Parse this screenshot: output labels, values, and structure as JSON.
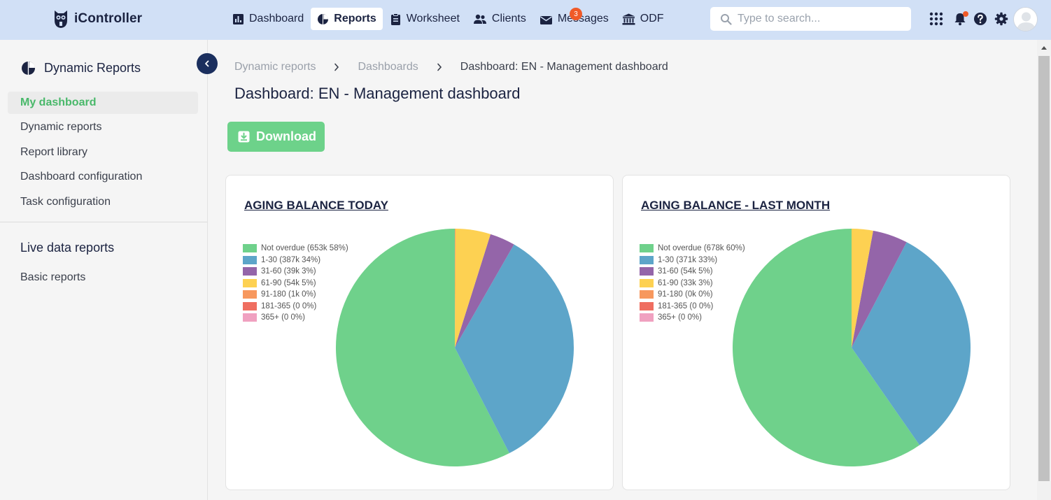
{
  "app": {
    "name": "iController"
  },
  "nav": {
    "items": [
      {
        "label": "Dashboard",
        "icon": "bar-chart-icon"
      },
      {
        "label": "Reports",
        "icon": "pie-chart-icon",
        "active": true
      },
      {
        "label": "Worksheet",
        "icon": "clipboard-icon"
      },
      {
        "label": "Clients",
        "icon": "users-icon"
      },
      {
        "label": "Messages",
        "icon": "envelope-icon",
        "badge": "3"
      },
      {
        "label": "ODF",
        "icon": "bank-icon"
      }
    ],
    "messages_badge": "3"
  },
  "search": {
    "placeholder": "Type to search..."
  },
  "sidebar": {
    "title": "Dynamic Reports",
    "items": [
      {
        "label": "My dashboard",
        "active": true
      },
      {
        "label": "Dynamic reports"
      },
      {
        "label": "Report library"
      },
      {
        "label": "Dashboard configuration"
      },
      {
        "label": "Task configuration"
      }
    ],
    "section_title": "Live data reports",
    "section_items": [
      {
        "label": "Basic reports"
      }
    ]
  },
  "breadcrumb": {
    "items": [
      "Dynamic reports",
      "Dashboards"
    ],
    "current": "Dashboard: EN - Management dashboard"
  },
  "page": {
    "title": "Dashboard: EN - Management dashboard",
    "download_label": "Download"
  },
  "colors": {
    "accent_green": "#6dd28a",
    "active_green": "#49b86a",
    "navy": "#1b2341",
    "topbar": "#d1e0f6",
    "badge_orange": "#f05a28"
  },
  "chart_data": [
    {
      "type": "pie",
      "title": "AGING BALANCE TODAY",
      "legend_position": "top-left",
      "slices": [
        {
          "label": "Not overdue (653k 58%)",
          "value": 653,
          "color": "#6fd18b"
        },
        {
          "label": "1-30 (387k 34%)",
          "value": 387,
          "color": "#5da5c9"
        },
        {
          "label": "31-60 (39k 3%)",
          "value": 39,
          "color": "#9465a9"
        },
        {
          "label": "61-90 (54k 5%)",
          "value": 54,
          "color": "#fdd152"
        },
        {
          "label": "91-180 (1k 0%)",
          "value": 1,
          "color": "#f7985e"
        },
        {
          "label": "181-365 (0 0%)",
          "value": 0,
          "color": "#ef6e61"
        },
        {
          "label": "365+ (0 0%)",
          "value": 0,
          "color": "#f0a1c0"
        }
      ]
    },
    {
      "type": "pie",
      "title": "AGING BALANCE - LAST MONTH",
      "legend_position": "top-left",
      "slices": [
        {
          "label": "Not overdue (678k 60%)",
          "value": 678,
          "color": "#6fd18b"
        },
        {
          "label": "1-30 (371k 33%)",
          "value": 371,
          "color": "#5da5c9"
        },
        {
          "label": "31-60 (54k 5%)",
          "value": 54,
          "color": "#9465a9"
        },
        {
          "label": "61-90 (33k 3%)",
          "value": 33,
          "color": "#fdd152"
        },
        {
          "label": "91-180 (0k 0%)",
          "value": 0,
          "color": "#f7985e"
        },
        {
          "label": "181-365 (0 0%)",
          "value": 0,
          "color": "#ef6e61"
        },
        {
          "label": "365+ (0 0%)",
          "value": 0,
          "color": "#f0a1c0"
        }
      ]
    }
  ]
}
